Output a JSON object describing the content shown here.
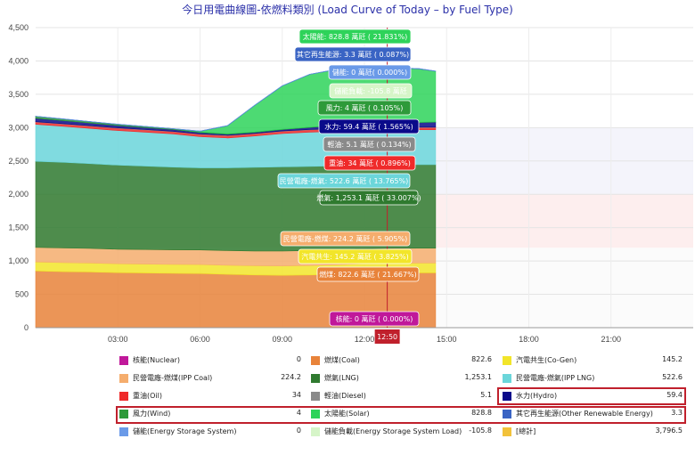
{
  "title": "今日用電曲線圖-依燃料類別 (Load Curve of Today – by Fuel Type)",
  "current_time_label": "12:50",
  "colors": {
    "nuclear": "#c0189a",
    "coal": "#e8833a",
    "cogen": "#f2e52a",
    "ipp_coal": "#f5ad6d",
    "lng": "#2f7a2f",
    "ipp_lng": "#6bd6da",
    "oil": "#ef2a2a",
    "diesel": "#8a8a8a",
    "hydro": "#0a0a8a",
    "wind": "#2e9a3a",
    "solar": "#2ed35a",
    "other_renew": "#3a64c4",
    "storage": "#6a9ae8",
    "storage_load": "#d6f5c8",
    "total": "#f2c23a",
    "cursor_line": "#c0202c"
  },
  "tooltips": [
    {
      "key": "solar",
      "text": "太陽能: 828.8 萬瓩 ( 21.831%)"
    },
    {
      "key": "other_renew",
      "text": "其它再生能源: 3.3 萬瓩 ( 0.087%)"
    },
    {
      "key": "storage",
      "text": "儲能: 0 萬瓩( 0.000%)"
    },
    {
      "key": "storage_load",
      "text": "儲能負載: -105.8 萬瓩"
    },
    {
      "key": "wind",
      "text": "風力: 4 萬瓩 ( 0.105%)"
    },
    {
      "key": "hydro",
      "text": "水力: 59.4 萬瓩 ( 1.565%)"
    },
    {
      "key": "diesel",
      "text": "輕油: 5.1 萬瓩 ( 0.134%)"
    },
    {
      "key": "oil",
      "text": "重油: 34 萬瓩 ( 0.896%)"
    },
    {
      "key": "ipp_lng",
      "text": "民營電廠-燃氣: 522.6 萬瓩 ( 13.765%)"
    },
    {
      "key": "lng",
      "text": "燃氣: 1,253.1 萬瓩 ( 33.007%)"
    },
    {
      "key": "ipp_coal",
      "text": "民營電廠-燃煤: 224.2 萬瓩 ( 5.905%)"
    },
    {
      "key": "cogen",
      "text": "汽電共生: 145.2 萬瓩 ( 3.825%)"
    },
    {
      "key": "coal",
      "text": "燃煤: 822.6 萬瓩 ( 21.667%)"
    },
    {
      "key": "nuclear",
      "text": "核能: 0 萬瓩 ( 0.000%)"
    }
  ],
  "legend_rows": [
    [
      {
        "key": "nuclear",
        "name": "核能(Nuclear)",
        "value": "0"
      },
      {
        "key": "coal",
        "name": "燃煤(Coal)",
        "value": "822.6"
      },
      {
        "key": "cogen",
        "name": "汽電共生(Co-Gen)",
        "value": "145.2"
      }
    ],
    [
      {
        "key": "ipp_coal",
        "name": "民營電廠-燃煤(IPP Coal)",
        "value": "224.2"
      },
      {
        "key": "lng",
        "name": "燃氣(LNG)",
        "value": "1,253.1"
      },
      {
        "key": "ipp_lng",
        "name": "民營電廠-燃氣(IPP LNG)",
        "value": "522.6"
      }
    ],
    [
      {
        "key": "oil",
        "name": "重油(Oil)",
        "value": "34"
      },
      {
        "key": "diesel",
        "name": "輕油(Diesel)",
        "value": "5.1"
      },
      {
        "key": "hydro",
        "name": "水力(Hydro)",
        "value": "59.4"
      }
    ],
    [
      {
        "key": "wind",
        "name": "風力(Wind)",
        "value": "4"
      },
      {
        "key": "solar",
        "name": "太陽能(Solar)",
        "value": "828.8"
      },
      {
        "key": "other_renew",
        "name": "其它再生能源(Other Renewable Energy)",
        "value": "3.3"
      }
    ],
    [
      {
        "key": "storage",
        "name": "儲能(Energy Storage System)",
        "value": "0"
      },
      {
        "key": "storage_load",
        "name": "儲能負載(Energy Storage System Load)",
        "value": "-105.8"
      },
      {
        "key": "total",
        "name": "[總計]",
        "value": "3,796.5"
      }
    ]
  ],
  "chart_data": {
    "type": "area",
    "title": "今日用電曲線圖-依燃料類別 (Load Curve of Today – by Fuel Type)",
    "stacked": true,
    "ylim": [
      0,
      4500
    ],
    "yticks": [
      "0",
      "500",
      "1,000",
      "1,500",
      "2,000",
      "2,500",
      "3,000",
      "3,500",
      "4,000",
      "4,500"
    ],
    "ytick_values": [
      0,
      500,
      1000,
      1500,
      2000,
      2500,
      3000,
      3500,
      4000,
      4500
    ],
    "xlim_hours": [
      0,
      24
    ],
    "xticks": [
      "03:00",
      "06:00",
      "09:00",
      "12:00",
      "15:00",
      "18:00",
      "21:00"
    ],
    "xtick_hours": [
      3,
      6,
      9,
      12,
      15,
      18,
      21
    ],
    "current_hour": 12.8333,
    "grid": true,
    "reference_bands": [
      {
        "from": 0,
        "to": 1200,
        "color": "#fbfbfb"
      },
      {
        "from": 1200,
        "to": 2000,
        "color": "#fdeeee"
      },
      {
        "from": 2000,
        "to": 3000,
        "color": "#f4f4fb"
      },
      {
        "from": 3000,
        "to": 4500,
        "color": "#ffffff"
      }
    ],
    "x": [
      0,
      1,
      2,
      3,
      4,
      5,
      6,
      7,
      8,
      9,
      10,
      11,
      12,
      13,
      14,
      14.6
    ],
    "series": [
      {
        "key": "nuclear",
        "values": [
          0,
          0,
          0,
          0,
          0,
          0,
          0,
          0,
          0,
          0,
          0,
          0,
          0,
          0,
          0,
          0
        ]
      },
      {
        "key": "coal",
        "values": [
          850,
          840,
          835,
          825,
          820,
          815,
          812,
          800,
          790,
          785,
          790,
          800,
          815,
          822,
          823,
          823
        ]
      },
      {
        "key": "cogen",
        "values": [
          135,
          135,
          135,
          134,
          134,
          134,
          135,
          136,
          138,
          140,
          142,
          144,
          145,
          145,
          145,
          145
        ]
      },
      {
        "key": "ipp_coal",
        "values": [
          220,
          220,
          219,
          218,
          218,
          218,
          219,
          220,
          222,
          224,
          224,
          224,
          224,
          224,
          224,
          224
        ]
      },
      {
        "key": "lng",
        "values": [
          1290,
          1285,
          1270,
          1260,
          1250,
          1240,
          1230,
          1240,
          1255,
          1262,
          1262,
          1258,
          1256,
          1253,
          1253,
          1253
        ]
      },
      {
        "key": "ipp_lng",
        "values": [
          555,
          540,
          530,
          520,
          510,
          500,
          470,
          450,
          470,
          500,
          515,
          520,
          522,
          523,
          523,
          523
        ]
      },
      {
        "key": "oil",
        "values": [
          34,
          34,
          34,
          34,
          34,
          34,
          34,
          34,
          34,
          34,
          34,
          34,
          34,
          34,
          34,
          34
        ]
      },
      {
        "key": "diesel",
        "values": [
          5,
          5,
          5,
          5,
          5,
          5,
          5,
          5,
          5,
          5,
          5,
          5,
          5,
          5,
          5,
          5
        ]
      },
      {
        "key": "hydro",
        "values": [
          50,
          45,
          40,
          35,
          30,
          25,
          20,
          15,
          15,
          20,
          30,
          45,
          58,
          60,
          70,
          75
        ]
      },
      {
        "key": "wind",
        "values": [
          30,
          25,
          20,
          18,
          15,
          12,
          10,
          8,
          6,
          5,
          5,
          4,
          4,
          4,
          4,
          4
        ]
      },
      {
        "key": "solar",
        "values": [
          0,
          0,
          0,
          0,
          0,
          0,
          10,
          120,
          400,
          650,
          790,
          840,
          830,
          830,
          800,
          760
        ]
      },
      {
        "key": "other_renew",
        "values": [
          3,
          3,
          3,
          3,
          3,
          3,
          3,
          3,
          3,
          3,
          3,
          3,
          3,
          3,
          3,
          3
        ]
      },
      {
        "key": "storage",
        "values": [
          0,
          0,
          0,
          0,
          0,
          0,
          0,
          0,
          0,
          0,
          0,
          0,
          0,
          0,
          0,
          0
        ]
      }
    ]
  }
}
